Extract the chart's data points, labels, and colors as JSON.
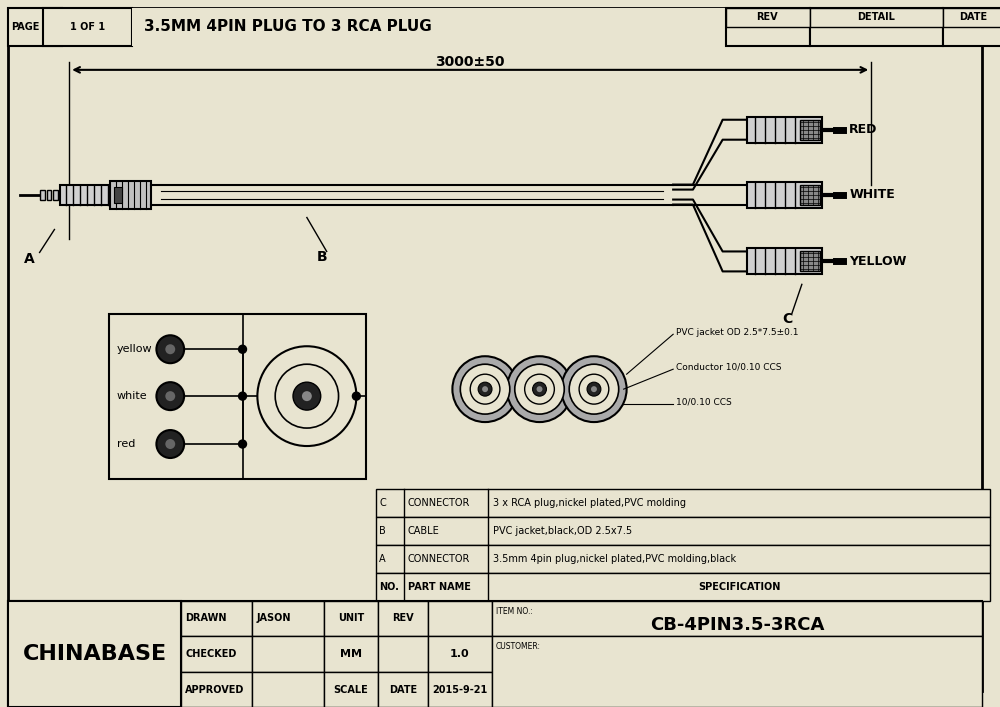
{
  "title": "3.5MM 4PIN PLUG TO 3 RCA PLUG",
  "page_label": "PAGE",
  "page_num": "1 OF 1",
  "rev_header": "REV",
  "detail_header": "DETAIL",
  "date_header": "DATE",
  "dimension_label": "3000±50",
  "label_a": "A",
  "label_b": "B",
  "label_c": "C",
  "label_red": "RED",
  "label_white": "WHITE",
  "label_yellow": "YELLOW",
  "label_yellow_pin": "yellow",
  "label_white_pin": "white",
  "label_red_pin": "red",
  "spec1": "PVC jacket OD 2.5*7.5±0.1",
  "spec2": "Conductor 10/0.10 CCS",
  "spec3": "10/0.10 CCS",
  "table_rows": [
    [
      "C",
      "CONNECTOR",
      "3 x RCA plug,nickel plated,PVC molding"
    ],
    [
      "B",
      "CABLE",
      "PVC jacket,black,OD 2.5x7.5"
    ],
    [
      "A",
      "CONNECTOR",
      "3.5mm 4pin plug,nickel plated,PVC molding,black"
    ],
    [
      "NO.",
      "PART NAME",
      "SPECIFICATION"
    ]
  ],
  "company": "CHINABASE",
  "drawn_label": "DRAWN",
  "drawn_value": "JASON",
  "checked_label": "CHECKED",
  "approved_label": "APPROVED",
  "unit_label": "UNIT",
  "unit_value": "MM",
  "rev_label": "REV",
  "rev_value": "1.0",
  "scale_label": "SCALE",
  "date_label": "DATE",
  "date_value": "2015-9-21",
  "item_label": "ITEM NO.:",
  "item_value": "CB-4PIN3.5-3RCA",
  "customer_label": "CUSTOMER:",
  "bg_color": "#e8e4d0",
  "line_color": "#000000",
  "text_color": "#000000"
}
